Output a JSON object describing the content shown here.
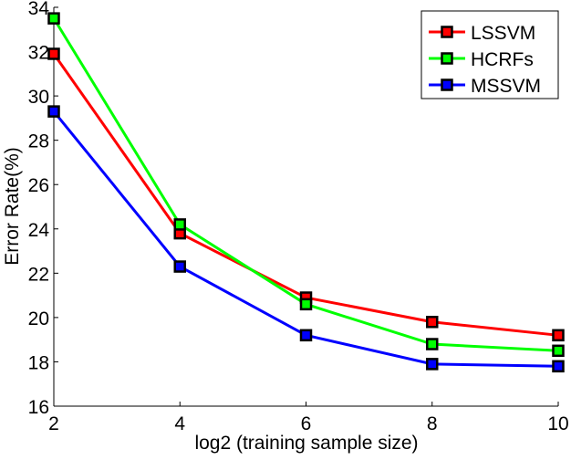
{
  "chart_data": {
    "type": "line",
    "title": "",
    "xlabel": "log2 (training sample size)",
    "ylabel": "Error Rate(%)",
    "x": [
      2,
      4,
      6,
      8,
      10
    ],
    "xlim": [
      2,
      10
    ],
    "ylim": [
      16,
      34
    ],
    "xticks": [
      "2",
      "4",
      "6",
      "8",
      "10"
    ],
    "yticks": [
      "16",
      "18",
      "20",
      "22",
      "24",
      "26",
      "28",
      "30",
      "32",
      "34"
    ],
    "grid": false,
    "legend_position": "top-right",
    "series": [
      {
        "name": "LSSVM",
        "color": "#ff0000",
        "values": [
          31.9,
          23.8,
          20.9,
          19.8,
          19.2
        ]
      },
      {
        "name": "HCRFs",
        "color": "#00ff00",
        "values": [
          33.5,
          24.2,
          20.6,
          18.8,
          18.5
        ]
      },
      {
        "name": "MSSVM",
        "color": "#0000ff",
        "values": [
          29.3,
          22.3,
          19.2,
          17.9,
          17.8
        ]
      }
    ]
  }
}
